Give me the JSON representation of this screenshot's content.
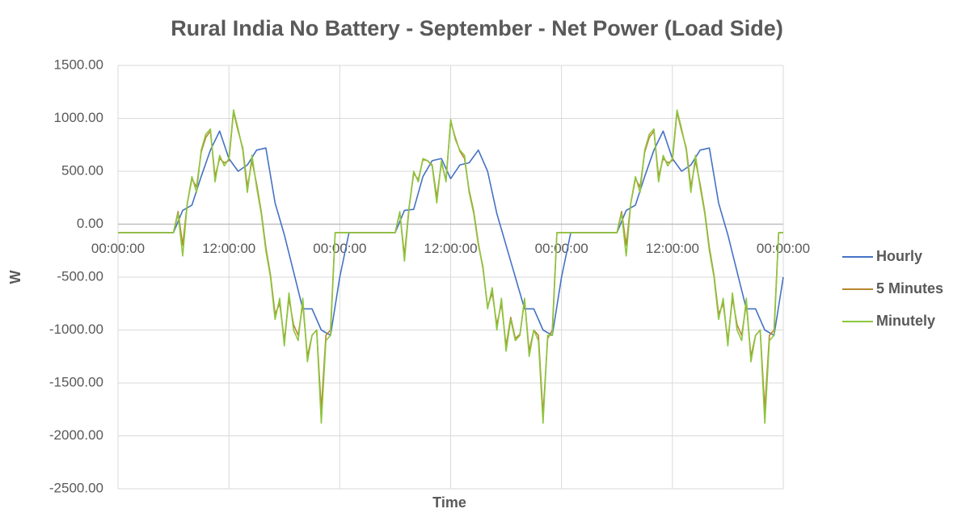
{
  "chart_data": {
    "type": "line",
    "title": "Rural India No Battery - September - Net Power (Load Side)",
    "x_label": "Time",
    "y_label": "W",
    "grid": true,
    "legend": "right",
    "xlim": [
      0,
      72
    ],
    "ylim": [
      -2500,
      1500
    ],
    "xticks": [
      {
        "value": 0,
        "label": "00:00:00"
      },
      {
        "value": 12,
        "label": "12:00:00"
      },
      {
        "value": 24,
        "label": "00:00:00"
      },
      {
        "value": 36,
        "label": "12:00:00"
      },
      {
        "value": 48,
        "label": "00:00:00"
      },
      {
        "value": 60,
        "label": "12:00:00"
      },
      {
        "value": 72,
        "label": "00:00:00"
      }
    ],
    "yticks": [
      {
        "value": -2500,
        "label": "-2500.00"
      },
      {
        "value": -2000,
        "label": "-2000.00"
      },
      {
        "value": -1500,
        "label": "-1500.00"
      },
      {
        "value": -1000,
        "label": "-1000.00"
      },
      {
        "value": -500,
        "label": "-500.00"
      },
      {
        "value": 0,
        "label": "0.00"
      },
      {
        "value": 500,
        "label": "500.00"
      },
      {
        "value": 1000,
        "label": "1000.00"
      },
      {
        "value": 1500,
        "label": "1500.00"
      }
    ],
    "x": [
      0,
      0.5,
      1,
      1.5,
      2,
      2.5,
      3,
      3.5,
      4,
      4.5,
      5,
      5.5,
      6,
      6.5,
      7,
      7.5,
      8,
      8.5,
      9,
      9.5,
      10,
      10.5,
      11,
      11.5,
      12,
      12.5,
      13,
      13.5,
      14,
      14.5,
      15,
      15.5,
      16,
      16.5,
      17,
      17.5,
      18,
      18.5,
      19,
      19.5,
      20,
      20.5,
      21,
      21.5,
      22,
      22.5,
      23,
      23.5,
      24,
      24.5,
      25,
      25.5,
      26,
      26.5,
      27,
      27.5,
      28,
      28.5,
      29,
      29.5,
      30,
      30.5,
      31,
      31.5,
      32,
      32.5,
      33,
      33.5,
      34,
      34.5,
      35,
      35.5,
      36,
      36.5,
      37,
      37.5,
      38,
      38.5,
      39,
      39.5,
      40,
      40.5,
      41,
      41.5,
      42,
      42.5,
      43,
      43.5,
      44,
      44.5,
      45,
      45.5,
      46,
      46.5,
      47,
      47.5,
      48,
      48.5,
      49,
      49.5,
      50,
      50.5,
      51,
      51.5,
      52,
      52.5,
      53,
      53.5,
      54,
      54.5,
      55,
      55.5,
      56,
      56.5,
      57,
      57.5,
      58,
      58.5,
      59,
      59.5,
      60,
      60.5,
      61,
      61.5,
      62,
      62.5,
      63,
      63.5,
      64,
      64.5,
      65,
      65.5,
      66,
      66.5,
      67,
      67.5,
      68,
      68.5,
      69,
      69.5,
      70,
      70.5,
      71,
      71.5,
      72
    ],
    "series": [
      {
        "name": "Hourly",
        "color": "#4472c4",
        "x": [
          0,
          1,
          2,
          3,
          4,
          5,
          6,
          7,
          8,
          9,
          10,
          11,
          12,
          13,
          14,
          15,
          16,
          17,
          18,
          19,
          20,
          21,
          22,
          23,
          24,
          25,
          26,
          27,
          28,
          29,
          30,
          31,
          32,
          33,
          34,
          35,
          36,
          37,
          38,
          39,
          40,
          41,
          42,
          43,
          44,
          45,
          46,
          47,
          48,
          49,
          50,
          51,
          52,
          53,
          54,
          55,
          56,
          57,
          58,
          59,
          60,
          61,
          62,
          63,
          64,
          65,
          66,
          67,
          68,
          69,
          70,
          71,
          72
        ],
        "values": [
          -80,
          -80,
          -80,
          -80,
          -80,
          -80,
          -80,
          130,
          180,
          450,
          700,
          880,
          620,
          500,
          560,
          700,
          720,
          200,
          -100,
          -450,
          -800,
          -800,
          -1000,
          -1050,
          -500,
          -80,
          -80,
          -80,
          -80,
          -80,
          -80,
          130,
          140,
          450,
          600,
          620,
          430,
          560,
          580,
          700,
          500,
          100,
          -200,
          -500,
          -800,
          -800,
          -1000,
          -1050,
          -500,
          -80,
          -80,
          -80,
          -80,
          -80,
          -80,
          130,
          180,
          450,
          700,
          880,
          620,
          500,
          560,
          700,
          720,
          200,
          -100,
          -450,
          -800,
          -800,
          -1000,
          -1050,
          -500
        ]
      },
      {
        "name": "5 Minutes",
        "color": "#b8862e",
        "values": [
          -80,
          -80,
          -80,
          -80,
          -80,
          -80,
          -80,
          -80,
          -80,
          -80,
          -80,
          -80,
          -80,
          120,
          -200,
          200,
          430,
          350,
          680,
          820,
          880,
          450,
          620,
          580,
          600,
          1060,
          880,
          720,
          350,
          600,
          380,
          120,
          -220,
          -480,
          -850,
          -750,
          -1100,
          -700,
          -950,
          -1050,
          -750,
          -1250,
          -1050,
          -1000,
          -1750,
          -1050,
          -1000,
          -80,
          -80,
          -80,
          -80,
          -80,
          -80,
          -80,
          -80,
          -80,
          -80,
          -80,
          -80,
          -80,
          -80,
          110,
          -300,
          160,
          480,
          420,
          610,
          600,
          560,
          250,
          580,
          420,
          970,
          820,
          690,
          620,
          320,
          120,
          -180,
          -420,
          -780,
          -650,
          -950,
          -750,
          -1150,
          -880,
          -1080,
          -1040,
          -720,
          -1200,
          -1000,
          -1050,
          -1800,
          -1080,
          -1000,
          -80,
          -80,
          -80,
          -80,
          -80,
          -80,
          -80,
          -80,
          -80,
          -80,
          -80,
          -80,
          -80,
          -80,
          120,
          -200,
          200,
          430,
          350,
          680,
          820,
          880,
          450,
          620,
          580,
          600,
          1060,
          880,
          720,
          350,
          600,
          380,
          120,
          -220,
          -480,
          -850,
          -750,
          -1100,
          -700,
          -950,
          -1050,
          -750,
          -1250,
          -1050,
          -1000,
          -1750,
          -1050,
          -1000,
          -80,
          -80
        ]
      },
      {
        "name": "Minutely",
        "color": "#8cc63f",
        "values": [
          -80,
          -80,
          -80,
          -80,
          -80,
          -80,
          -80,
          -80,
          -80,
          -80,
          -80,
          -80,
          -80,
          100,
          -300,
          200,
          450,
          300,
          700,
          850,
          900,
          400,
          650,
          550,
          620,
          1080,
          900,
          700,
          300,
          650,
          350,
          100,
          -250,
          -500,
          -900,
          -700,
          -1150,
          -650,
          -1000,
          -1100,
          -700,
          -1300,
          -1050,
          -1000,
          -1880,
          -1100,
          -1050,
          -80,
          -80,
          -80,
          -80,
          -80,
          -80,
          -80,
          -80,
          -80,
          -80,
          -80,
          -80,
          -80,
          -80,
          120,
          -350,
          150,
          500,
          400,
          620,
          600,
          550,
          200,
          600,
          400,
          990,
          800,
          700,
          650,
          300,
          100,
          -200,
          -400,
          -800,
          -600,
          -1000,
          -700,
          -1200,
          -900,
          -1100,
          -1050,
          -700,
          -1250,
          -1000,
          -1100,
          -1880,
          -1050,
          -1050,
          -80,
          -80,
          -80,
          -80,
          -80,
          -80,
          -80,
          -80,
          -80,
          -80,
          -80,
          -80,
          -80,
          -80,
          100,
          -300,
          200,
          450,
          300,
          700,
          850,
          900,
          400,
          650,
          550,
          620,
          1080,
          900,
          700,
          300,
          650,
          350,
          100,
          -250,
          -500,
          -900,
          -700,
          -1150,
          -650,
          -1000,
          -1100,
          -700,
          -1300,
          -1050,
          -1000,
          -1880,
          -1100,
          -1050,
          -80,
          -80
        ]
      }
    ]
  }
}
